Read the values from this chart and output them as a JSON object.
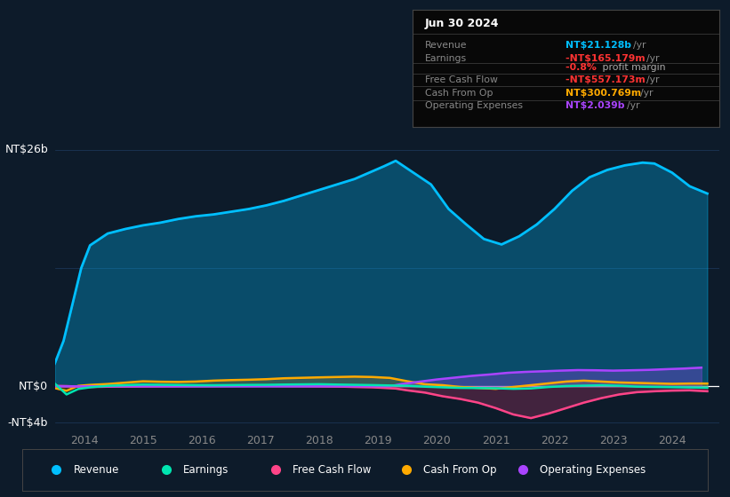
{
  "bg_color": "#0d1b2a",
  "plot_bg_color": "#0d1b2a",
  "grid_color": "#1e3a5f",
  "zero_line_color": "#ffffff",
  "ylabel_text": "NT$26b",
  "ylabel_bottom": "-NT$4b",
  "y_zero_label": "NT$0",
  "xlim": [
    2013.5,
    2024.8
  ],
  "ylim": [
    -4.8,
    28
  ],
  "xtick_labels": [
    "2014",
    "2015",
    "2016",
    "2017",
    "2018",
    "2019",
    "2020",
    "2021",
    "2022",
    "2023",
    "2024"
  ],
  "xtick_values": [
    2014,
    2015,
    2016,
    2017,
    2018,
    2019,
    2020,
    2021,
    2022,
    2023,
    2024
  ],
  "info_box": {
    "date": "Jun 30 2024",
    "rows": [
      {
        "label": "Revenue",
        "value": "NT$21.128b",
        "suffix": "/yr",
        "value_color": "#00bfff"
      },
      {
        "label": "Earnings",
        "value": "-NT$165.179m",
        "suffix": "/yr",
        "value_color": "#ff3333"
      },
      {
        "label": "",
        "value": "-0.8%",
        "suffix": " profit margin",
        "value_color": "#ff3333",
        "suffix_color": "#aaaaaa"
      },
      {
        "label": "Free Cash Flow",
        "value": "-NT$557.173m",
        "suffix": "/yr",
        "value_color": "#ff3333"
      },
      {
        "label": "Cash From Op",
        "value": "NT$300.769m",
        "suffix": "/yr",
        "value_color": "#ffaa00"
      },
      {
        "label": "Operating Expenses",
        "value": "NT$2.039b",
        "suffix": "/yr",
        "value_color": "#aa44ff"
      }
    ]
  },
  "series": {
    "revenue": {
      "color": "#00bfff",
      "fill_alpha": 0.3,
      "lw": 2.0,
      "label": "Revenue",
      "x": [
        2013.5,
        2013.65,
        2013.8,
        2013.95,
        2014.1,
        2014.4,
        2014.7,
        2015.0,
        2015.3,
        2015.6,
        2015.9,
        2016.2,
        2016.5,
        2016.8,
        2017.1,
        2017.4,
        2017.7,
        2018.0,
        2018.3,
        2018.6,
        2018.85,
        2019.1,
        2019.3,
        2019.6,
        2019.9,
        2020.2,
        2020.5,
        2020.8,
        2021.1,
        2021.4,
        2021.7,
        2022.0,
        2022.3,
        2022.6,
        2022.9,
        2023.2,
        2023.5,
        2023.7,
        2024.0,
        2024.3,
        2024.6
      ],
      "y": [
        2.5,
        5.0,
        9.0,
        13.0,
        15.5,
        16.8,
        17.3,
        17.7,
        18.0,
        18.4,
        18.7,
        18.9,
        19.2,
        19.5,
        19.9,
        20.4,
        21.0,
        21.6,
        22.2,
        22.8,
        23.5,
        24.2,
        24.8,
        23.5,
        22.2,
        19.5,
        17.8,
        16.2,
        15.6,
        16.5,
        17.8,
        19.5,
        21.5,
        23.0,
        23.8,
        24.3,
        24.6,
        24.5,
        23.5,
        22.0,
        21.2
      ]
    },
    "earnings": {
      "color": "#00e5b0",
      "lw": 1.8,
      "label": "Earnings",
      "x": [
        2013.5,
        2013.7,
        2013.9,
        2014.1,
        2014.4,
        2014.7,
        2015.0,
        2015.3,
        2015.6,
        2015.9,
        2016.2,
        2016.5,
        2016.8,
        2017.1,
        2017.4,
        2017.7,
        2018.0,
        2018.3,
        2018.6,
        2018.9,
        2019.2,
        2019.5,
        2019.8,
        2020.1,
        2020.4,
        2020.7,
        2021.0,
        2021.3,
        2021.6,
        2021.9,
        2022.2,
        2022.5,
        2022.8,
        2023.1,
        2023.4,
        2023.7,
        2024.0,
        2024.3,
        2024.6
      ],
      "y": [
        0.3,
        -0.9,
        -0.3,
        -0.12,
        0.05,
        0.12,
        0.18,
        0.16,
        0.14,
        0.12,
        0.11,
        0.13,
        0.15,
        0.16,
        0.19,
        0.21,
        0.23,
        0.19,
        0.16,
        0.13,
        0.09,
        0.06,
        -0.05,
        -0.12,
        -0.18,
        -0.2,
        -0.22,
        -0.28,
        -0.24,
        -0.08,
        0.02,
        0.07,
        0.11,
        0.06,
        -0.04,
        -0.07,
        -0.1,
        -0.13,
        -0.16
      ]
    },
    "free_cash_flow": {
      "color": "#ff4488",
      "fill_alpha": 0.22,
      "lw": 1.8,
      "label": "Free Cash Flow",
      "x": [
        2013.5,
        2013.7,
        2013.9,
        2014.1,
        2014.4,
        2014.7,
        2015.0,
        2015.3,
        2015.6,
        2015.9,
        2016.2,
        2016.5,
        2016.8,
        2017.1,
        2017.4,
        2017.7,
        2018.0,
        2018.3,
        2018.6,
        2018.9,
        2019.1,
        2019.3,
        2019.5,
        2019.8,
        2020.1,
        2020.4,
        2020.7,
        2021.0,
        2021.3,
        2021.6,
        2021.9,
        2022.2,
        2022.5,
        2022.8,
        2023.1,
        2023.4,
        2023.7,
        2024.0,
        2024.3,
        2024.6
      ],
      "y": [
        0.05,
        0.02,
        -0.03,
        -0.08,
        -0.05,
        -0.03,
        -0.01,
        0.0,
        0.01,
        0.02,
        0.03,
        0.04,
        0.05,
        0.05,
        0.03,
        0.02,
        0.0,
        -0.03,
        -0.08,
        -0.12,
        -0.18,
        -0.25,
        -0.45,
        -0.7,
        -1.1,
        -1.4,
        -1.8,
        -2.4,
        -3.1,
        -3.5,
        -3.0,
        -2.4,
        -1.8,
        -1.3,
        -0.9,
        -0.65,
        -0.55,
        -0.48,
        -0.45,
        -0.55
      ]
    },
    "cash_from_op": {
      "color": "#ffaa00",
      "fill_alpha": 0.18,
      "lw": 1.8,
      "label": "Cash From Op",
      "x": [
        2013.5,
        2013.7,
        2013.9,
        2014.1,
        2014.4,
        2014.7,
        2015.0,
        2015.3,
        2015.6,
        2015.9,
        2016.2,
        2016.5,
        2016.8,
        2017.1,
        2017.4,
        2017.7,
        2018.0,
        2018.3,
        2018.6,
        2018.9,
        2019.2,
        2019.5,
        2019.8,
        2020.1,
        2020.4,
        2020.7,
        2021.0,
        2021.3,
        2021.6,
        2021.9,
        2022.2,
        2022.5,
        2022.8,
        2023.1,
        2023.4,
        2023.7,
        2024.0,
        2024.3,
        2024.6
      ],
      "y": [
        -0.2,
        -0.5,
        0.05,
        0.15,
        0.25,
        0.4,
        0.55,
        0.5,
        0.48,
        0.52,
        0.62,
        0.68,
        0.72,
        0.78,
        0.88,
        0.93,
        0.98,
        1.02,
        1.06,
        1.02,
        0.92,
        0.55,
        0.22,
        0.12,
        -0.08,
        -0.18,
        -0.28,
        -0.08,
        0.12,
        0.32,
        0.52,
        0.62,
        0.52,
        0.42,
        0.37,
        0.32,
        0.27,
        0.3,
        0.3
      ]
    },
    "operating_expenses": {
      "color": "#aa44ff",
      "fill_alpha": 0.28,
      "lw": 1.8,
      "label": "Operating Expenses",
      "x": [
        2013.5,
        2013.7,
        2013.9,
        2014.1,
        2014.4,
        2014.7,
        2015.0,
        2015.3,
        2015.6,
        2015.9,
        2016.2,
        2016.5,
        2016.8,
        2017.1,
        2017.4,
        2017.7,
        2018.0,
        2018.3,
        2018.6,
        2018.9,
        2019.2,
        2019.4,
        2019.7,
        2020.0,
        2020.3,
        2020.6,
        2020.9,
        2021.2,
        2021.5,
        2021.8,
        2022.1,
        2022.4,
        2022.7,
        2023.0,
        2023.3,
        2023.6,
        2023.9,
        2024.2,
        2024.5
      ],
      "y": [
        0.0,
        0.0,
        0.0,
        0.0,
        0.0,
        0.0,
        0.0,
        0.0,
        0.0,
        0.0,
        0.0,
        0.0,
        0.0,
        0.0,
        0.0,
        0.0,
        0.0,
        0.0,
        0.0,
        0.0,
        0.0,
        0.25,
        0.5,
        0.75,
        0.95,
        1.15,
        1.3,
        1.48,
        1.58,
        1.65,
        1.72,
        1.78,
        1.76,
        1.72,
        1.76,
        1.8,
        1.88,
        1.95,
        2.05
      ]
    }
  },
  "legend": [
    {
      "label": "Revenue",
      "color": "#00bfff"
    },
    {
      "label": "Earnings",
      "color": "#00e5b0"
    },
    {
      "label": "Free Cash Flow",
      "color": "#ff4488"
    },
    {
      "label": "Cash From Op",
      "color": "#ffaa00"
    },
    {
      "label": "Operating Expenses",
      "color": "#aa44ff"
    }
  ],
  "text_color": "#888888",
  "white": "#ffffff"
}
